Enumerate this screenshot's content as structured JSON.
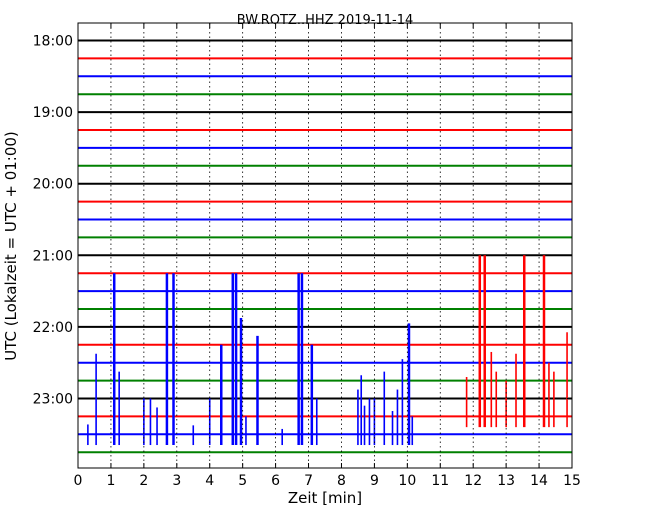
{
  "chart_data": {
    "type": "line",
    "title": "BW.ROTZ..HHZ 2019-11-14",
    "xlabel": "Zeit  [min]",
    "ylabel": "UTC (Lokalzeit = UTC + 01:00)",
    "xlim": [
      0,
      15
    ],
    "x_ticks": [
      "0",
      "1",
      "2",
      "3",
      "4",
      "5",
      "6",
      "7",
      "8",
      "9",
      "10",
      "11",
      "12",
      "13",
      "14",
      "15"
    ],
    "y_ticks": [
      "18:00",
      "19:00",
      "20:00",
      "21:00",
      "22:00",
      "23:00"
    ],
    "y_tick_rows": [
      0,
      4,
      8,
      12,
      16,
      20
    ],
    "grid": "vertical dotted",
    "trace_interval_minutes": 15,
    "trace_colors": [
      "#000000",
      "#ff0000",
      "#0000ff",
      "#008000"
    ],
    "trace_count": 24,
    "highlighted_events": {
      "blue_trace_row": 22,
      "blue_spike_times_min": [
        0.3,
        0.55,
        1.1,
        1.25,
        2.0,
        2.2,
        2.4,
        2.7,
        2.9,
        3.5,
        4.0,
        4.35,
        4.7,
        4.8,
        4.95,
        5.1,
        5.45,
        6.2,
        6.7,
        6.8,
        7.1,
        7.25,
        8.5,
        8.6,
        8.7,
        8.85,
        9.0,
        9.3,
        9.55,
        9.7,
        9.85,
        10.05,
        10.15
      ],
      "red_trace_row": 21,
      "red_spike_times_min": [
        11.8,
        12.2,
        12.35,
        12.55,
        12.7,
        13.0,
        13.3,
        13.55,
        14.15,
        14.3,
        14.45,
        14.85
      ]
    },
    "spike_up_reach": {
      "0.3": 0.55,
      "0.55": 4.5,
      "1.1": 9,
      "1.25": 3.5,
      "2.0": 2.5,
      "2.2": 2.0,
      "2.4": 1.5,
      "2.7": 9,
      "2.9": 9,
      "3.5": 0.5,
      "4.0": 9,
      "4.35": 5.0,
      "4.7": 9,
      "4.8": 9,
      "4.95": 6.5,
      "5.1": 1.0,
      "5.45": 5.5,
      "6.2": 0.3,
      "6.7": 9,
      "6.8": 9,
      "7.1": 5.0,
      "7.25": 2.0,
      "8.5": 2.5,
      "8.6": 3.3,
      "8.7": 1.6,
      "8.85": 2.0,
      "9.0": 9,
      "9.3": 3.5,
      "9.55": 1.3,
      "9.7": 2.5,
      "9.85": 4.2,
      "10.05": 6.2,
      "10.15": 1.0,
      "11.8": 2.2,
      "12.2": 9,
      "12.35": 9,
      "12.55": 3.6,
      "12.7": 2.5,
      "13.0": 5.5,
      "13.3": 3.5,
      "13.55": 9,
      "14.15": 9,
      "14.3": 3.0,
      "14.45": 2.5,
      "14.85": 4.7
    }
  }
}
